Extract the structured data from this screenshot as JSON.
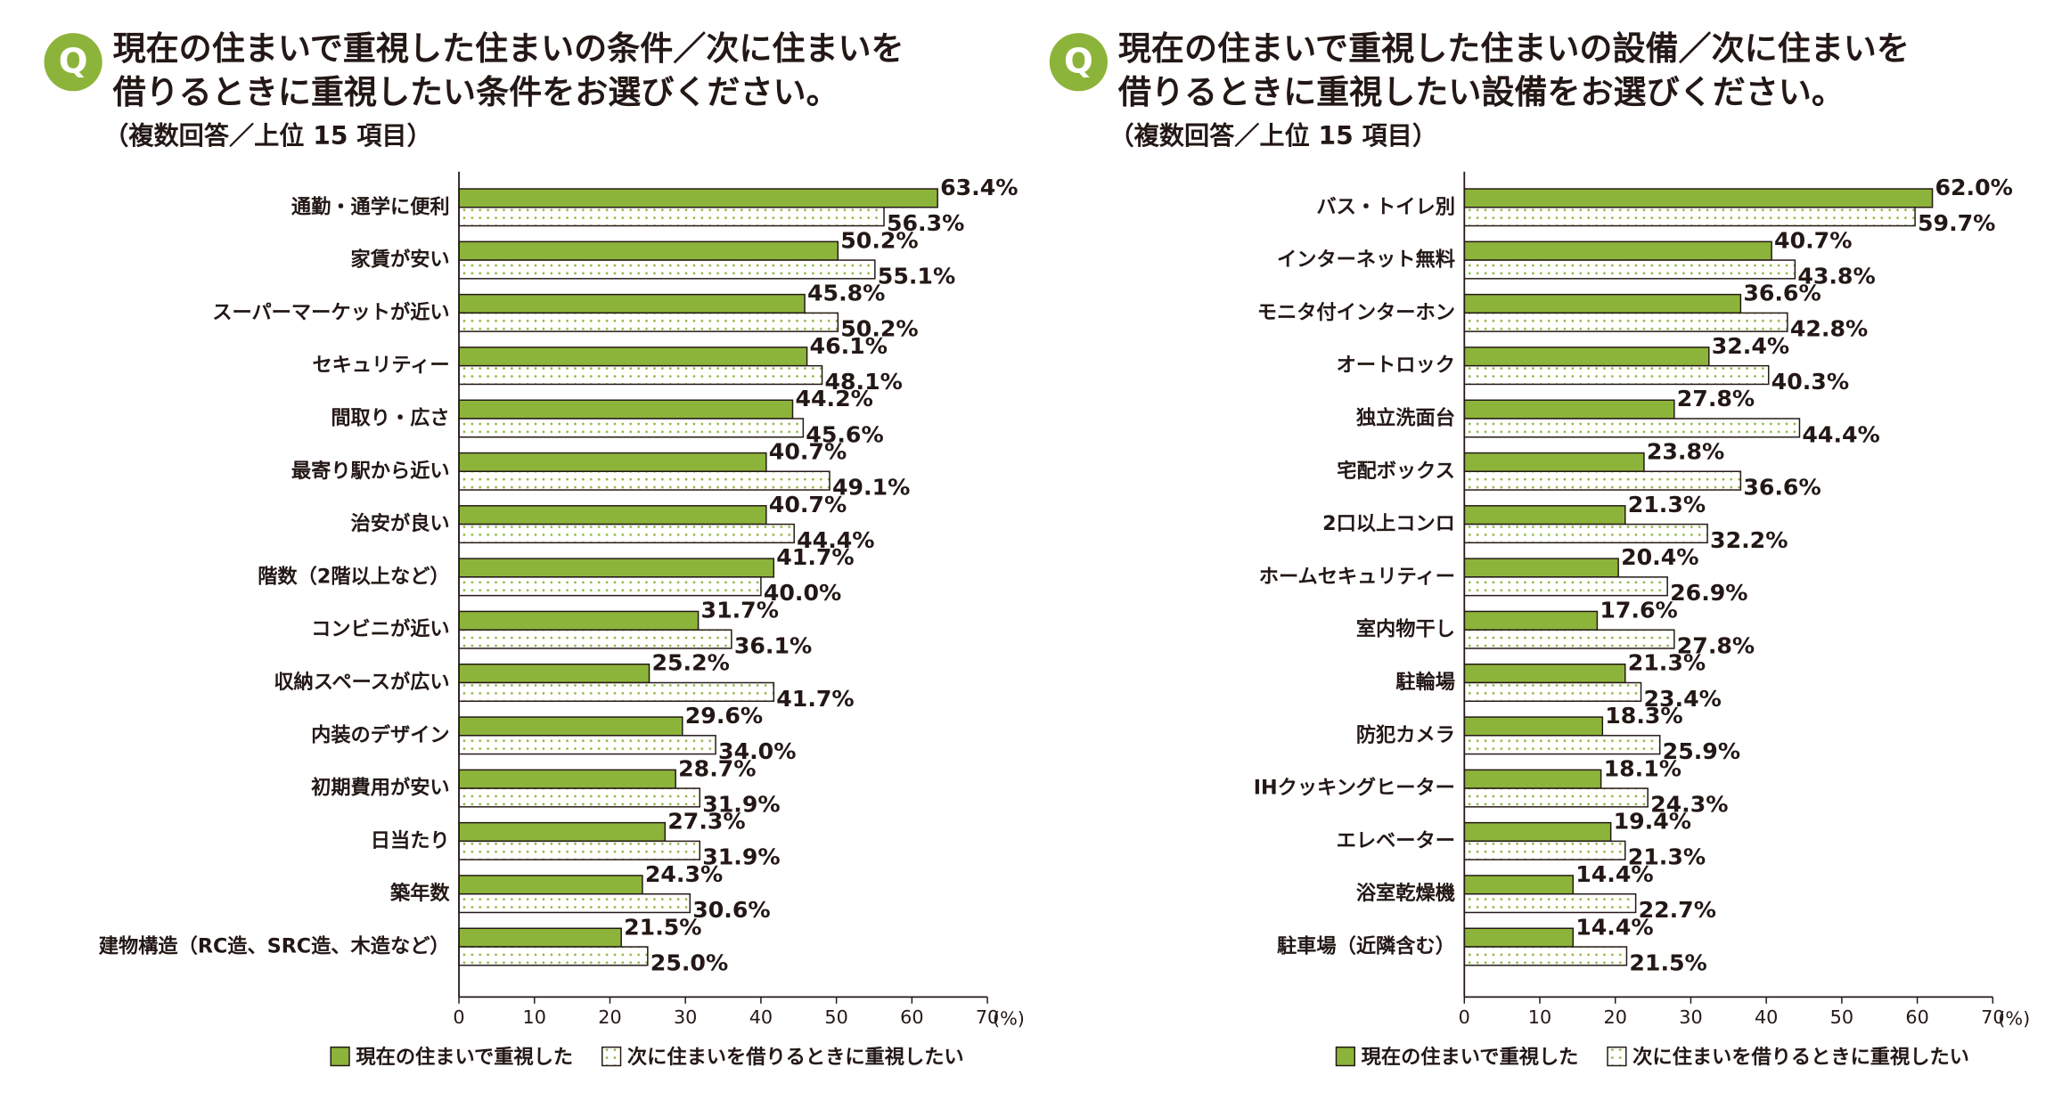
{
  "chart_data": [
    {
      "type": "bar",
      "orientation": "horizontal",
      "badge": "Q",
      "title": [
        "現在の住まいで重視した住まいの条件／次に住まいを",
        "借りるときに重視したい条件をお選びください。"
      ],
      "subtitle": "（複数回答／上位 15 項目）",
      "categories": [
        "通勤・通学に便利",
        "家賃が安い",
        "スーパーマーケットが近い",
        "セキュリティー",
        "間取り・広さ",
        "最寄り駅から近い",
        "治安が良い",
        "階数（2階以上など）",
        "コンビニが近い",
        "収納スペースが広い",
        "内装のデザイン",
        "初期費用が安い",
        "日当たり",
        "築年数",
        "建物構造（RC造、SRC造、木造など）"
      ],
      "series": [
        {
          "name": "現在の住まいで重視した",
          "color": "#8db43a",
          "values": [
            63.4,
            50.2,
            45.8,
            46.1,
            44.2,
            40.7,
            40.7,
            41.7,
            31.7,
            25.2,
            29.6,
            28.7,
            27.3,
            24.3,
            21.5
          ],
          "value_labels": [
            "63.4%",
            "50.2%",
            "45.8%",
            "46.1%",
            "44.2%",
            "40.7%",
            "40.7%",
            "41.7%",
            "31.7%",
            "25.2%",
            "29.6%",
            "28.7%",
            "27.3%",
            "24.3%",
            "21.5%"
          ]
        },
        {
          "name": "次に住まいを借りるときに重視したい",
          "color": "#ffffff",
          "hatch": "dots",
          "values": [
            56.3,
            55.1,
            50.2,
            48.1,
            45.6,
            49.1,
            44.4,
            40.0,
            36.1,
            41.7,
            34.0,
            31.9,
            31.9,
            30.6,
            25.0
          ],
          "value_labels": [
            "56.3%",
            "55.1%",
            "50.2%",
            "48.1%",
            "45.6%",
            "49.1%",
            "44.4%",
            "40.0%",
            "36.1%",
            "41.7%",
            "34.0%",
            "31.9%",
            "31.9%",
            "30.6%",
            "25.0%"
          ]
        }
      ],
      "xlim": [
        0,
        70
      ],
      "xticks": [
        0,
        10,
        20,
        30,
        40,
        50,
        60,
        70
      ],
      "xlabel": "(%)",
      "legend": "bottom"
    },
    {
      "type": "bar",
      "orientation": "horizontal",
      "badge": "Q",
      "title": [
        "現在の住まいで重視した住まいの設備／次に住まいを",
        "借りるときに重視したい設備をお選びください。"
      ],
      "subtitle": "（複数回答／上位 15 項目）",
      "categories": [
        "バス・トイレ別",
        "インターネット無料",
        "モニタ付インターホン",
        "オートロック",
        "独立洗面台",
        "宅配ボックス",
        "2口以上コンロ",
        "ホームセキュリティー",
        "室内物干し",
        "駐輪場",
        "防犯カメラ",
        "IHクッキングヒーター",
        "エレベーター",
        "浴室乾燥機",
        "駐車場（近隣含む）"
      ],
      "series": [
        {
          "name": "現在の住まいで重視した",
          "color": "#8db43a",
          "values": [
            62.0,
            40.7,
            36.6,
            32.4,
            27.8,
            23.8,
            21.3,
            20.4,
            17.6,
            21.3,
            18.3,
            18.1,
            19.4,
            14.4,
            14.4
          ],
          "value_labels": [
            "62.0%",
            "40.7%",
            "36.6%",
            "32.4%",
            "27.8%",
            "23.8%",
            "21.3%",
            "20.4%",
            "17.6%",
            "21.3%",
            "18.3%",
            "18.1%",
            "19.4%",
            "14.4%",
            "14.4%"
          ]
        },
        {
          "name": "次に住まいを借りるときに重視したい",
          "color": "#ffffff",
          "hatch": "dots",
          "values": [
            59.7,
            43.8,
            42.8,
            40.3,
            44.4,
            36.6,
            32.2,
            26.9,
            27.8,
            23.4,
            25.9,
            24.3,
            21.3,
            22.7,
            21.5
          ],
          "value_labels": [
            "59.7%",
            "43.8%",
            "42.8%",
            "40.3%",
            "44.4%",
            "36.6%",
            "32.2%",
            "26.9%",
            "27.8%",
            "23.4%",
            "25.9%",
            "24.3%",
            "21.3%",
            "22.7%",
            "21.5%"
          ]
        }
      ],
      "xlim": [
        0,
        70
      ],
      "xticks": [
        0,
        10,
        20,
        30,
        40,
        50,
        60,
        70
      ],
      "xlabel": "(%)",
      "legend": "bottom"
    }
  ]
}
